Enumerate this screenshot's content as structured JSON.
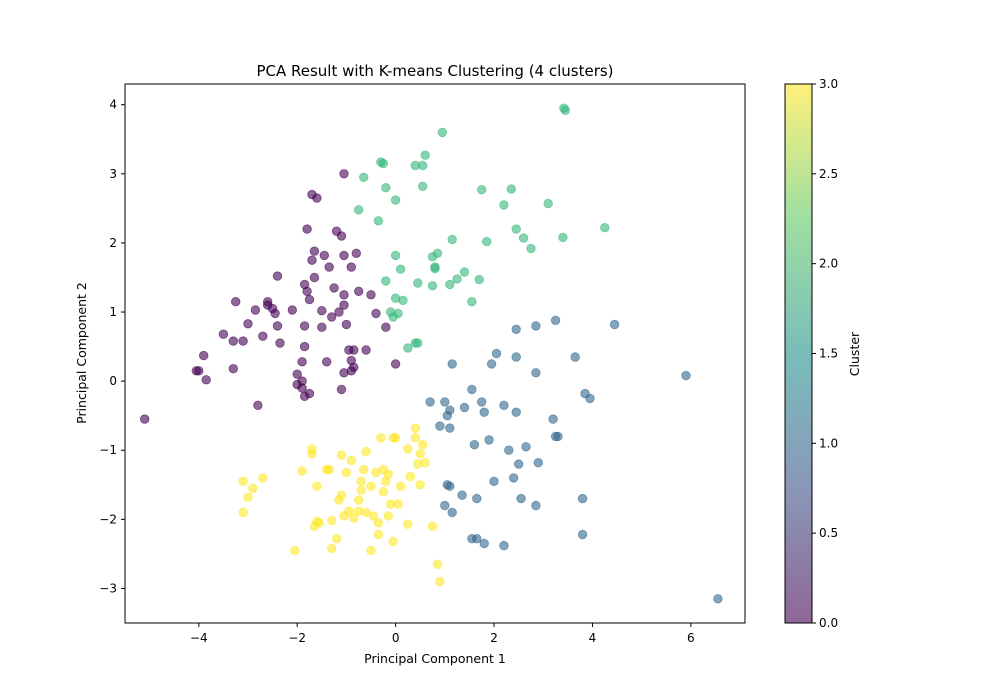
{
  "chart_data": {
    "type": "scatter",
    "title": "PCA Result with K-means Clustering (4 clusters)",
    "xlabel": "Principal Component 1",
    "ylabel": "Principal Component 2",
    "xlim": [
      -5.5,
      7.1
    ],
    "ylim": [
      -3.5,
      4.3
    ],
    "xticks": [
      -4,
      -2,
      0,
      2,
      4,
      6
    ],
    "yticks": [
      -3,
      -2,
      -1,
      0,
      1,
      2,
      3,
      4
    ],
    "grid": false,
    "marker_alpha": 0.6,
    "colorbar": {
      "label": "Cluster",
      "range": [
        0.0,
        3.0
      ],
      "ticks": [
        0.0,
        0.5,
        1.0,
        1.5,
        2.0,
        2.5,
        3.0
      ],
      "tick_labels": [
        "0.0",
        "0.5",
        "1.0",
        "1.5",
        "2.0",
        "2.5",
        "3.0"
      ],
      "colormap": "viridis",
      "stops": [
        "#440154",
        "#3b528b",
        "#21918c",
        "#5ec962",
        "#fde725"
      ]
    },
    "cluster_colors": [
      "#440154",
      "#31688e",
      "#35b779",
      "#fde725"
    ],
    "series": [
      {
        "cluster": 0,
        "points": [
          [
            -5.1,
            -0.55
          ],
          [
            -4.05,
            0.15
          ],
          [
            -4.0,
            0.15
          ],
          [
            -3.9,
            0.37
          ],
          [
            -3.85,
            0.02
          ],
          [
            -3.5,
            0.68
          ],
          [
            -3.3,
            0.58
          ],
          [
            -3.3,
            0.18
          ],
          [
            -3.25,
            1.15
          ],
          [
            -3.1,
            0.58
          ],
          [
            -3.0,
            0.83
          ],
          [
            -2.85,
            1.03
          ],
          [
            -2.8,
            -0.35
          ],
          [
            -2.7,
            0.65
          ],
          [
            -2.6,
            1.15
          ],
          [
            -2.6,
            1.1
          ],
          [
            -2.5,
            1.05
          ],
          [
            -2.45,
            0.98
          ],
          [
            -2.4,
            1.52
          ],
          [
            -2.4,
            0.8
          ],
          [
            -2.35,
            0.55
          ],
          [
            -2.1,
            1.03
          ],
          [
            -2.0,
            0.1
          ],
          [
            -2.0,
            -0.05
          ],
          [
            -1.9,
            0.28
          ],
          [
            -1.9,
            0.0
          ],
          [
            -1.9,
            -0.1
          ],
          [
            -1.85,
            -0.22
          ],
          [
            -1.85,
            0.5
          ],
          [
            -1.85,
            0.8
          ],
          [
            -1.85,
            1.4
          ],
          [
            -1.8,
            1.3
          ],
          [
            -1.8,
            2.2
          ],
          [
            -1.75,
            1.18
          ],
          [
            -1.75,
            -0.18
          ],
          [
            -1.7,
            1.75
          ],
          [
            -1.7,
            2.7
          ],
          [
            -1.65,
            1.88
          ],
          [
            -1.65,
            1.5
          ],
          [
            -1.6,
            2.65
          ],
          [
            -1.5,
            1.02
          ],
          [
            -1.5,
            0.78
          ],
          [
            -1.45,
            1.82
          ],
          [
            -1.4,
            0.28
          ],
          [
            -1.35,
            1.65
          ],
          [
            -1.3,
            0.93
          ],
          [
            -1.25,
            1.35
          ],
          [
            -1.2,
            2.17
          ],
          [
            -1.15,
            1.0
          ],
          [
            -1.1,
            -0.12
          ],
          [
            -1.1,
            2.1
          ],
          [
            -1.05,
            1.82
          ],
          [
            -1.05,
            1.25
          ],
          [
            -1.05,
            1.1
          ],
          [
            -1.05,
            0.12
          ],
          [
            -1.05,
            3.0
          ],
          [
            -1.0,
            0.82
          ],
          [
            -0.95,
            0.45
          ],
          [
            -0.9,
            1.65
          ],
          [
            -0.9,
            0.3
          ],
          [
            -0.9,
            0.15
          ],
          [
            -0.85,
            0.45
          ],
          [
            -0.85,
            0.2
          ],
          [
            -0.8,
            1.85
          ],
          [
            -0.75,
            1.3
          ],
          [
            -0.6,
            0.45
          ],
          [
            -0.5,
            1.25
          ],
          [
            -0.4,
            0.98
          ],
          [
            -0.2,
            0.78
          ],
          [
            0.0,
            0.25
          ]
        ]
      },
      {
        "cluster": 1,
        "points": [
          [
            0.7,
            -0.3
          ],
          [
            0.9,
            -0.65
          ],
          [
            1.0,
            -0.3
          ],
          [
            1.05,
            -0.5
          ],
          [
            1.1,
            -0.42
          ],
          [
            1.1,
            -0.68
          ],
          [
            1.15,
            0.25
          ],
          [
            1.4,
            -0.38
          ],
          [
            1.55,
            -0.12
          ],
          [
            1.6,
            -0.92
          ],
          [
            1.75,
            -0.3
          ],
          [
            1.8,
            -0.45
          ],
          [
            1.9,
            -0.85
          ],
          [
            1.95,
            0.25
          ],
          [
            2.05,
            0.4
          ],
          [
            2.2,
            -0.35
          ],
          [
            2.3,
            -1.0
          ],
          [
            2.45,
            -0.45
          ],
          [
            2.45,
            0.75
          ],
          [
            2.45,
            0.35
          ],
          [
            2.4,
            -1.4
          ],
          [
            2.5,
            -1.2
          ],
          [
            2.55,
            -1.7
          ],
          [
            2.65,
            -0.95
          ],
          [
            2.85,
            0.12
          ],
          [
            2.85,
            0.8
          ],
          [
            2.9,
            -1.18
          ],
          [
            3.2,
            -0.55
          ],
          [
            3.25,
            0.88
          ],
          [
            3.25,
            -0.8
          ],
          [
            3.3,
            -0.8
          ],
          [
            3.65,
            0.35
          ],
          [
            3.8,
            -1.7
          ],
          [
            3.8,
            -2.22
          ],
          [
            3.85,
            -0.18
          ],
          [
            3.95,
            -0.25
          ],
          [
            4.45,
            0.82
          ],
          [
            5.9,
            0.08
          ],
          [
            6.55,
            -3.15
          ],
          [
            1.0,
            -1.8
          ],
          [
            1.05,
            -1.5
          ],
          [
            1.1,
            -1.52
          ],
          [
            1.15,
            -1.9
          ],
          [
            1.35,
            -1.65
          ],
          [
            1.55,
            -2.28
          ],
          [
            1.65,
            -2.28
          ],
          [
            1.65,
            -1.7
          ],
          [
            1.8,
            -2.35
          ],
          [
            2.0,
            -1.45
          ],
          [
            2.2,
            -2.38
          ],
          [
            2.85,
            -1.8
          ]
        ]
      },
      {
        "cluster": 2,
        "points": [
          [
            -0.75,
            2.48
          ],
          [
            -0.65,
            2.95
          ],
          [
            -0.35,
            2.32
          ],
          [
            -0.3,
            3.17
          ],
          [
            -0.25,
            3.15
          ],
          [
            -0.2,
            1.45
          ],
          [
            -0.2,
            2.8
          ],
          [
            -0.1,
            1.0
          ],
          [
            -0.05,
            0.93
          ],
          [
            0.0,
            1.82
          ],
          [
            0.0,
            1.2
          ],
          [
            0.0,
            2.62
          ],
          [
            0.05,
            0.98
          ],
          [
            0.1,
            1.62
          ],
          [
            0.15,
            1.17
          ],
          [
            0.25,
            0.48
          ],
          [
            0.4,
            3.12
          ],
          [
            0.4,
            0.55
          ],
          [
            0.45,
            0.55
          ],
          [
            0.45,
            1.42
          ],
          [
            0.55,
            3.12
          ],
          [
            0.55,
            2.82
          ],
          [
            0.6,
            3.27
          ],
          [
            0.75,
            1.38
          ],
          [
            0.75,
            1.8
          ],
          [
            0.8,
            1.65
          ],
          [
            0.8,
            1.63
          ],
          [
            0.85,
            1.85
          ],
          [
            0.95,
            3.6
          ],
          [
            1.1,
            1.4
          ],
          [
            1.15,
            2.05
          ],
          [
            1.25,
            1.48
          ],
          [
            1.4,
            1.58
          ],
          [
            1.55,
            1.15
          ],
          [
            1.7,
            1.47
          ],
          [
            1.75,
            2.77
          ],
          [
            1.85,
            2.02
          ],
          [
            2.2,
            2.55
          ],
          [
            2.35,
            2.78
          ],
          [
            2.45,
            2.2
          ],
          [
            2.6,
            2.07
          ],
          [
            2.75,
            1.92
          ],
          [
            3.1,
            2.57
          ],
          [
            3.4,
            2.08
          ],
          [
            3.42,
            3.95
          ],
          [
            3.45,
            3.92
          ],
          [
            4.25,
            2.22
          ]
        ]
      },
      {
        "cluster": 3,
        "points": [
          [
            -3.1,
            -1.45
          ],
          [
            -3.1,
            -1.9
          ],
          [
            -3.0,
            -1.68
          ],
          [
            -2.9,
            -1.55
          ],
          [
            -2.7,
            -1.4
          ],
          [
            -2.05,
            -2.45
          ],
          [
            -1.9,
            -1.3
          ],
          [
            -1.7,
            -0.98
          ],
          [
            -1.7,
            -1.05
          ],
          [
            -1.65,
            -2.1
          ],
          [
            -1.6,
            -2.03
          ],
          [
            -1.6,
            -1.52
          ],
          [
            -1.55,
            -2.05
          ],
          [
            -1.4,
            -1.28
          ],
          [
            -1.35,
            -1.28
          ],
          [
            -1.3,
            -2.02
          ],
          [
            -1.3,
            -2.42
          ],
          [
            -1.2,
            -2.28
          ],
          [
            -1.15,
            -1.72
          ],
          [
            -1.1,
            -1.65
          ],
          [
            -1.1,
            -1.07
          ],
          [
            -1.05,
            -1.95
          ],
          [
            -1.0,
            -1.32
          ],
          [
            -0.95,
            -1.88
          ],
          [
            -0.9,
            -1.15
          ],
          [
            -0.85,
            -1.98
          ],
          [
            -0.75,
            -1.88
          ],
          [
            -0.75,
            -1.72
          ],
          [
            -0.7,
            -1.58
          ],
          [
            -0.7,
            -1.45
          ],
          [
            -0.65,
            -1.28
          ],
          [
            -0.6,
            -1.02
          ],
          [
            -0.6,
            -1.9
          ],
          [
            -0.5,
            -2.45
          ],
          [
            -0.5,
            -1.52
          ],
          [
            -0.45,
            -1.95
          ],
          [
            -0.4,
            -1.32
          ],
          [
            -0.35,
            -2.05
          ],
          [
            -0.35,
            -2.22
          ],
          [
            -0.3,
            -0.82
          ],
          [
            -0.25,
            -1.28
          ],
          [
            -0.25,
            -1.6
          ],
          [
            -0.2,
            -1.45
          ],
          [
            -0.15,
            -1.35
          ],
          [
            -0.15,
            -1.95
          ],
          [
            -0.1,
            -1.78
          ],
          [
            -0.05,
            -0.82
          ],
          [
            -0.05,
            -2.32
          ],
          [
            0.0,
            -0.82
          ],
          [
            0.05,
            -1.78
          ],
          [
            0.1,
            -1.52
          ],
          [
            0.25,
            -2.07
          ],
          [
            0.25,
            -0.98
          ],
          [
            0.3,
            -1.38
          ],
          [
            0.4,
            -0.82
          ],
          [
            0.4,
            -0.68
          ],
          [
            0.45,
            -1.2
          ],
          [
            0.5,
            -1.05
          ],
          [
            0.5,
            -1.5
          ],
          [
            0.55,
            -0.92
          ],
          [
            0.6,
            -1.18
          ],
          [
            0.75,
            -2.1
          ],
          [
            0.85,
            -2.65
          ],
          [
            0.9,
            -2.9
          ]
        ]
      }
    ]
  }
}
